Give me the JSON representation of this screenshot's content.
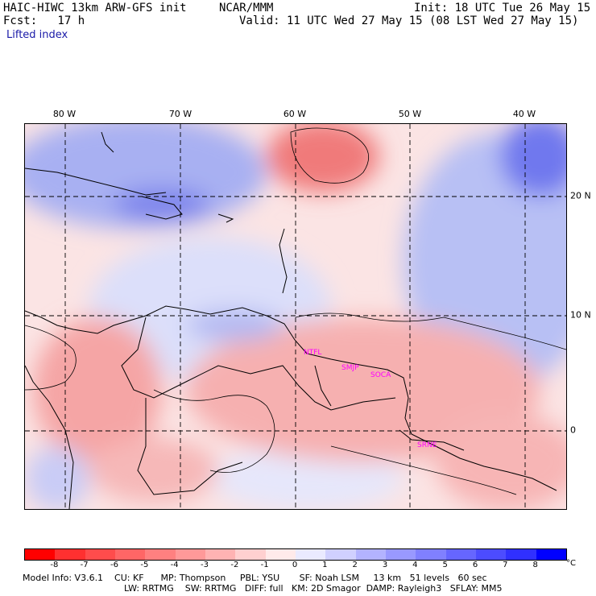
{
  "header": {
    "line1_left": "HAIC-HIWC 13km ARW-GFS init",
    "line1_center": "NCAR/MMM",
    "line1_right": "Init: 18 UTC Tue 26 May 15",
    "line2_left": "Fcst:   17 h",
    "line2_right": "Valid: 11 UTC Wed 27 May 15 (08 LST Wed 27 May 15)",
    "field": "Lifted index"
  },
  "axes": {
    "lon_labels": [
      "80 W",
      "70 W",
      "60 W",
      "50 W",
      "40 W"
    ],
    "lat_labels": [
      "20 N",
      "10 N",
      "0"
    ]
  },
  "stations": [
    "NTFL",
    "SMJP",
    "SOCA",
    "SRNE"
  ],
  "colorbar": {
    "ticks": [
      "-8",
      "-7",
      "-6",
      "-5",
      "-4",
      "-3",
      "-2",
      "-1",
      "0",
      "1",
      "2",
      "3",
      "4",
      "5",
      "6",
      "7",
      "8"
    ],
    "unit": "°C",
    "colors": [
      "#ff0000",
      "#ff3030",
      "#ff4c4c",
      "#ff6666",
      "#ff8080",
      "#ff9999",
      "#ffb3b3",
      "#ffd0d0",
      "#ffeaea",
      "#eaeaff",
      "#d0d0ff",
      "#b3b3ff",
      "#9999ff",
      "#8080ff",
      "#6666ff",
      "#4c4cff",
      "#3030ff",
      "#0000ff"
    ]
  },
  "footer": {
    "line1": "Model Info: V3.6.1    CU: KF      MP: Thompson     PBL: YSU       SF: Noah LSM     13 km   51 levels   60 sec",
    "line2": "LW: RRTMG    SW: RRTMG   DIFF: full   KM: 2D Smagor  DAMP: Rayleigh3   SFLAY: MM5"
  }
}
